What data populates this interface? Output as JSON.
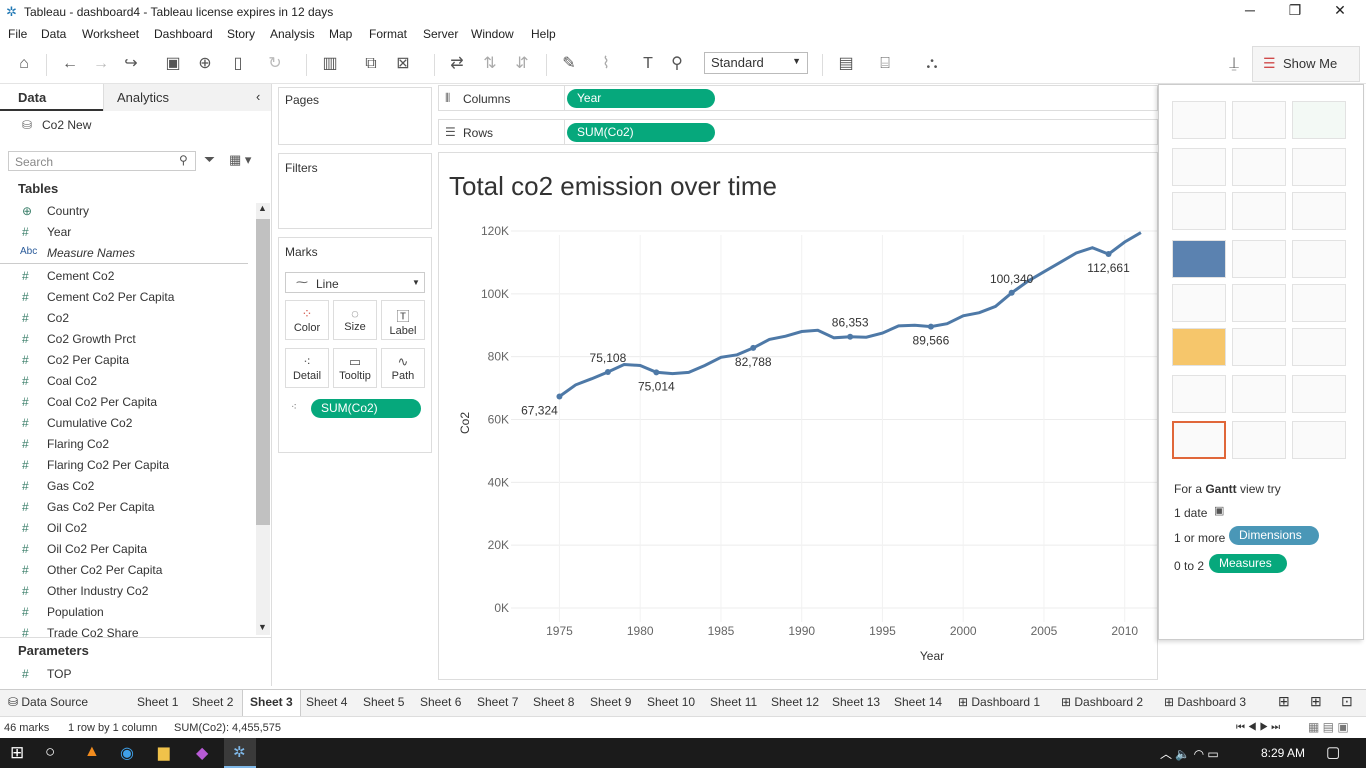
{
  "window": {
    "title": "Tableau - dashboard4 - Tableau license expires in 12 days"
  },
  "menu": [
    "File",
    "Data",
    "Worksheet",
    "Dashboard",
    "Story",
    "Analysis",
    "Map",
    "Format",
    "Server",
    "Window",
    "Help"
  ],
  "toolbar": {
    "mark_fit": "Standard",
    "show_me_label": "Show Me"
  },
  "left": {
    "tabs": {
      "data": "Data",
      "analytics": "Analytics"
    },
    "datasource": "Co2 New",
    "search_placeholder": "Search",
    "tables_header": "Tables",
    "fields": [
      {
        "icon": "globe",
        "name": "Country"
      },
      {
        "icon": "#",
        "name": "Year"
      },
      {
        "icon": "Abc",
        "name": "Measure Names"
      },
      {
        "icon": "#",
        "name": "Cement Co2"
      },
      {
        "icon": "#",
        "name": "Cement Co2 Per Capita"
      },
      {
        "icon": "#",
        "name": "Co2"
      },
      {
        "icon": "#",
        "name": "Co2 Growth Prct"
      },
      {
        "icon": "#",
        "name": "Co2 Per Capita"
      },
      {
        "icon": "#",
        "name": "Coal Co2"
      },
      {
        "icon": "#",
        "name": "Coal Co2 Per Capita"
      },
      {
        "icon": "#",
        "name": "Cumulative Co2"
      },
      {
        "icon": "#",
        "name": "Flaring Co2"
      },
      {
        "icon": "#",
        "name": "Flaring Co2 Per Capita"
      },
      {
        "icon": "#",
        "name": "Gas Co2"
      },
      {
        "icon": "#",
        "name": "Gas Co2 Per Capita"
      },
      {
        "icon": "#",
        "name": "Oil Co2"
      },
      {
        "icon": "#",
        "name": "Oil Co2 Per Capita"
      },
      {
        "icon": "#",
        "name": "Other Co2 Per Capita"
      },
      {
        "icon": "#",
        "name": "Other Industry Co2"
      },
      {
        "icon": "#",
        "name": "Population"
      },
      {
        "icon": "#",
        "name": "Trade Co2 Share"
      }
    ],
    "parameters_header": "Parameters",
    "parameters": [
      {
        "icon": "#",
        "name": "TOP"
      }
    ]
  },
  "cards": {
    "pages": "Pages",
    "filters": "Filters",
    "marks": "Marks",
    "mark_type": "Line",
    "mark_buttons": [
      "Color",
      "Size",
      "Label",
      "Detail",
      "Tooltip",
      "Path"
    ],
    "mark_pill": "SUM(Co2)"
  },
  "shelves": {
    "columns_label": "Columns",
    "columns_pill": "Year",
    "rows_label": "Rows",
    "rows_pill": "SUM(Co2)"
  },
  "chart_data": {
    "type": "line",
    "title": "Total co2 emission over time",
    "xlabel": "Year",
    "ylabel": "Co2",
    "xlim": [
      1972,
      2012
    ],
    "ylim": [
      0,
      120000
    ],
    "x_ticks": [
      "1975",
      "1980",
      "1985",
      "1990",
      "1995",
      "2000",
      "2005",
      "2010"
    ],
    "y_ticks": [
      "0K",
      "20K",
      "40K",
      "60K",
      "80K",
      "100K",
      "120K"
    ],
    "line_color": "#4e79a7",
    "x": [
      1975,
      1976,
      1977,
      1978,
      1979,
      1980,
      1981,
      1982,
      1983,
      1984,
      1985,
      1986,
      1987,
      1988,
      1989,
      1990,
      1991,
      1992,
      1993,
      1994,
      1995,
      1996,
      1997,
      1998,
      1999,
      2000,
      2001,
      2002,
      2003,
      2004,
      2005,
      2006,
      2007,
      2008,
      2009,
      2010,
      2011
    ],
    "values": [
      67324,
      71000,
      73000,
      75108,
      77500,
      77200,
      75014,
      74600,
      75000,
      77200,
      79800,
      80600,
      82788,
      85500,
      86500,
      88000,
      88400,
      86000,
      86353,
      86200,
      87500,
      89800,
      90000,
      89566,
      90500,
      93000,
      94000,
      96000,
      100340,
      104000,
      107000,
      110000,
      113000,
      114700,
      112661,
      116500,
      119500
    ],
    "labels": [
      {
        "x": 1975,
        "text": "67,324",
        "pos": "below"
      },
      {
        "x": 1978,
        "text": "75,108",
        "pos": "above"
      },
      {
        "x": 1981,
        "text": "75,014",
        "pos": "below"
      },
      {
        "x": 1987,
        "text": "82,788",
        "pos": "below"
      },
      {
        "x": 1993,
        "text": "86,353",
        "pos": "above"
      },
      {
        "x": 1998,
        "text": "89,566",
        "pos": "below"
      },
      {
        "x": 2003,
        "text": "100,340",
        "pos": "above"
      },
      {
        "x": 2009,
        "text": "112,661",
        "pos": "below"
      }
    ]
  },
  "showme": {
    "hint_prefix": "For a ",
    "hint_chart": "Gantt",
    "hint_suffix": " view try",
    "req1": "1 date",
    "req2_prefix": "1 or more",
    "req2_pill": "Dimensions",
    "req3_prefix": "0 to 2",
    "req3_pill": "Measures"
  },
  "sheets": [
    "Data Source",
    "Sheet 1",
    "Sheet 2",
    "Sheet 3",
    "Sheet 4",
    "Sheet 5",
    "Sheet 6",
    "Sheet 7",
    "Sheet 8",
    "Sheet 9",
    "Sheet 10",
    "Sheet 11",
    "Sheet 12",
    "Sheet 13",
    "Sheet 14",
    "Dashboard 1",
    "Dashboard 2",
    "Dashboard 3"
  ],
  "active_sheet": "Sheet 3",
  "status": {
    "marks": "46 marks",
    "rows": "1 row by 1 column",
    "sum": "SUM(Co2): 4,455,575"
  },
  "taskbar": {
    "time": "8:29 AM"
  }
}
